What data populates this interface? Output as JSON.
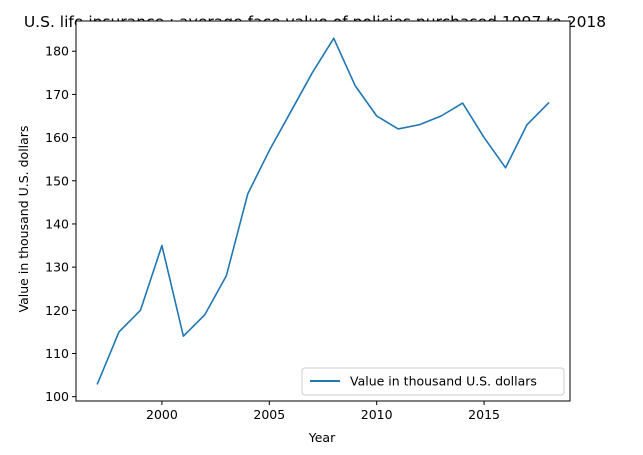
{
  "chart_data": {
    "type": "line",
    "title": "U.S. life insurance : average face value of policies purchased 1997 to 2018",
    "xlabel": "Year",
    "ylabel": "Value in thousand U.S. dollars",
    "xlim": [
      1996.0,
      2019.0
    ],
    "ylim": [
      99.0,
      187.0
    ],
    "xticks": [
      2000,
      2005,
      2010,
      2015
    ],
    "yticks": [
      100,
      110,
      120,
      130,
      140,
      150,
      160,
      170,
      180
    ],
    "grid": false,
    "legend_position": "lower-right",
    "x": [
      1997,
      1998,
      1999,
      2000,
      2001,
      2002,
      2003,
      2004,
      2005,
      2006,
      2007,
      2008,
      2009,
      2010,
      2011,
      2012,
      2013,
      2014,
      2015,
      2016,
      2017,
      2018
    ],
    "series": [
      {
        "name": "Value in thousand U.S. dollars",
        "color": "#1f77b4",
        "values": [
          103,
          115,
          120,
          135,
          114,
          119,
          128,
          147,
          157,
          166,
          175,
          183,
          172,
          165,
          162,
          163,
          165,
          168,
          160,
          153,
          163,
          168
        ]
      }
    ]
  }
}
